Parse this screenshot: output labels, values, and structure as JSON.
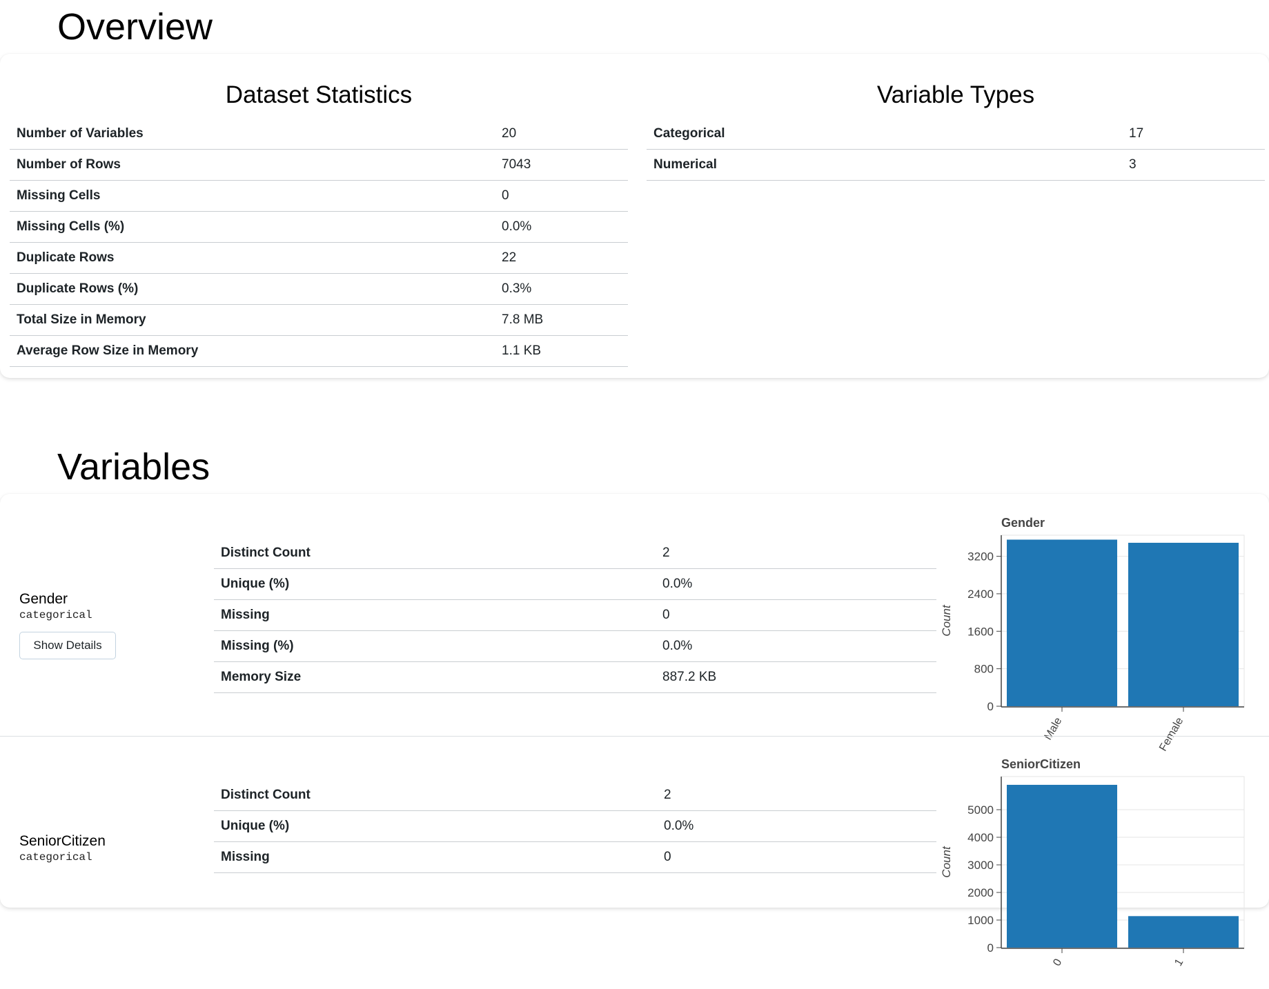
{
  "overview": {
    "heading": "Overview",
    "dataset_statistics": {
      "title": "Dataset Statistics",
      "rows": [
        {
          "label": "Number of Variables",
          "value": "20"
        },
        {
          "label": "Number of Rows",
          "value": "7043"
        },
        {
          "label": "Missing Cells",
          "value": "0"
        },
        {
          "label": "Missing Cells (%)",
          "value": "0.0%"
        },
        {
          "label": "Duplicate Rows",
          "value": "22"
        },
        {
          "label": "Duplicate Rows (%)",
          "value": "0.3%"
        },
        {
          "label": "Total Size in Memory",
          "value": "7.8 MB"
        },
        {
          "label": "Average Row Size in Memory",
          "value": "1.1 KB"
        }
      ]
    },
    "variable_types": {
      "title": "Variable Types",
      "rows": [
        {
          "label": "Categorical",
          "value": "17"
        },
        {
          "label": "Numerical",
          "value": "3"
        }
      ]
    }
  },
  "variables": {
    "heading": "Variables",
    "items": [
      {
        "name": "Gender",
        "type": "categorical",
        "button_label": "Show Details",
        "stats": [
          {
            "label": "Distinct Count",
            "value": "2"
          },
          {
            "label": "Unique (%)",
            "value": "0.0%"
          },
          {
            "label": "Missing",
            "value": "0"
          },
          {
            "label": "Missing (%)",
            "value": "0.0%"
          },
          {
            "label": "Memory Size",
            "value": "887.2 KB"
          }
        ]
      },
      {
        "name": "SeniorCitizen",
        "type": "categorical",
        "stats": [
          {
            "label": "Distinct Count",
            "value": "2"
          },
          {
            "label": "Unique (%)",
            "value": "0.0%"
          },
          {
            "label": "Missing",
            "value": "0"
          }
        ]
      }
    ]
  },
  "chart_data": [
    {
      "type": "bar",
      "title": "Gender",
      "ylabel": "Count",
      "xlabel": "",
      "categories": [
        "Male",
        "Female"
      ],
      "values": [
        3555,
        3488
      ],
      "ylim": [
        0,
        3650
      ],
      "yticks": [
        0,
        800,
        1600,
        2400,
        3200
      ],
      "grid": true,
      "color": "#1f77b4"
    },
    {
      "type": "bar",
      "title": "SeniorCitizen",
      "ylabel": "Count",
      "xlabel": "",
      "categories": [
        "0",
        "1"
      ],
      "values": [
        5901,
        1142
      ],
      "ylim": [
        0,
        6200
      ],
      "yticks": [
        0,
        1000,
        2000,
        3000,
        4000,
        5000
      ],
      "grid": true,
      "color": "#1f77b4"
    }
  ]
}
